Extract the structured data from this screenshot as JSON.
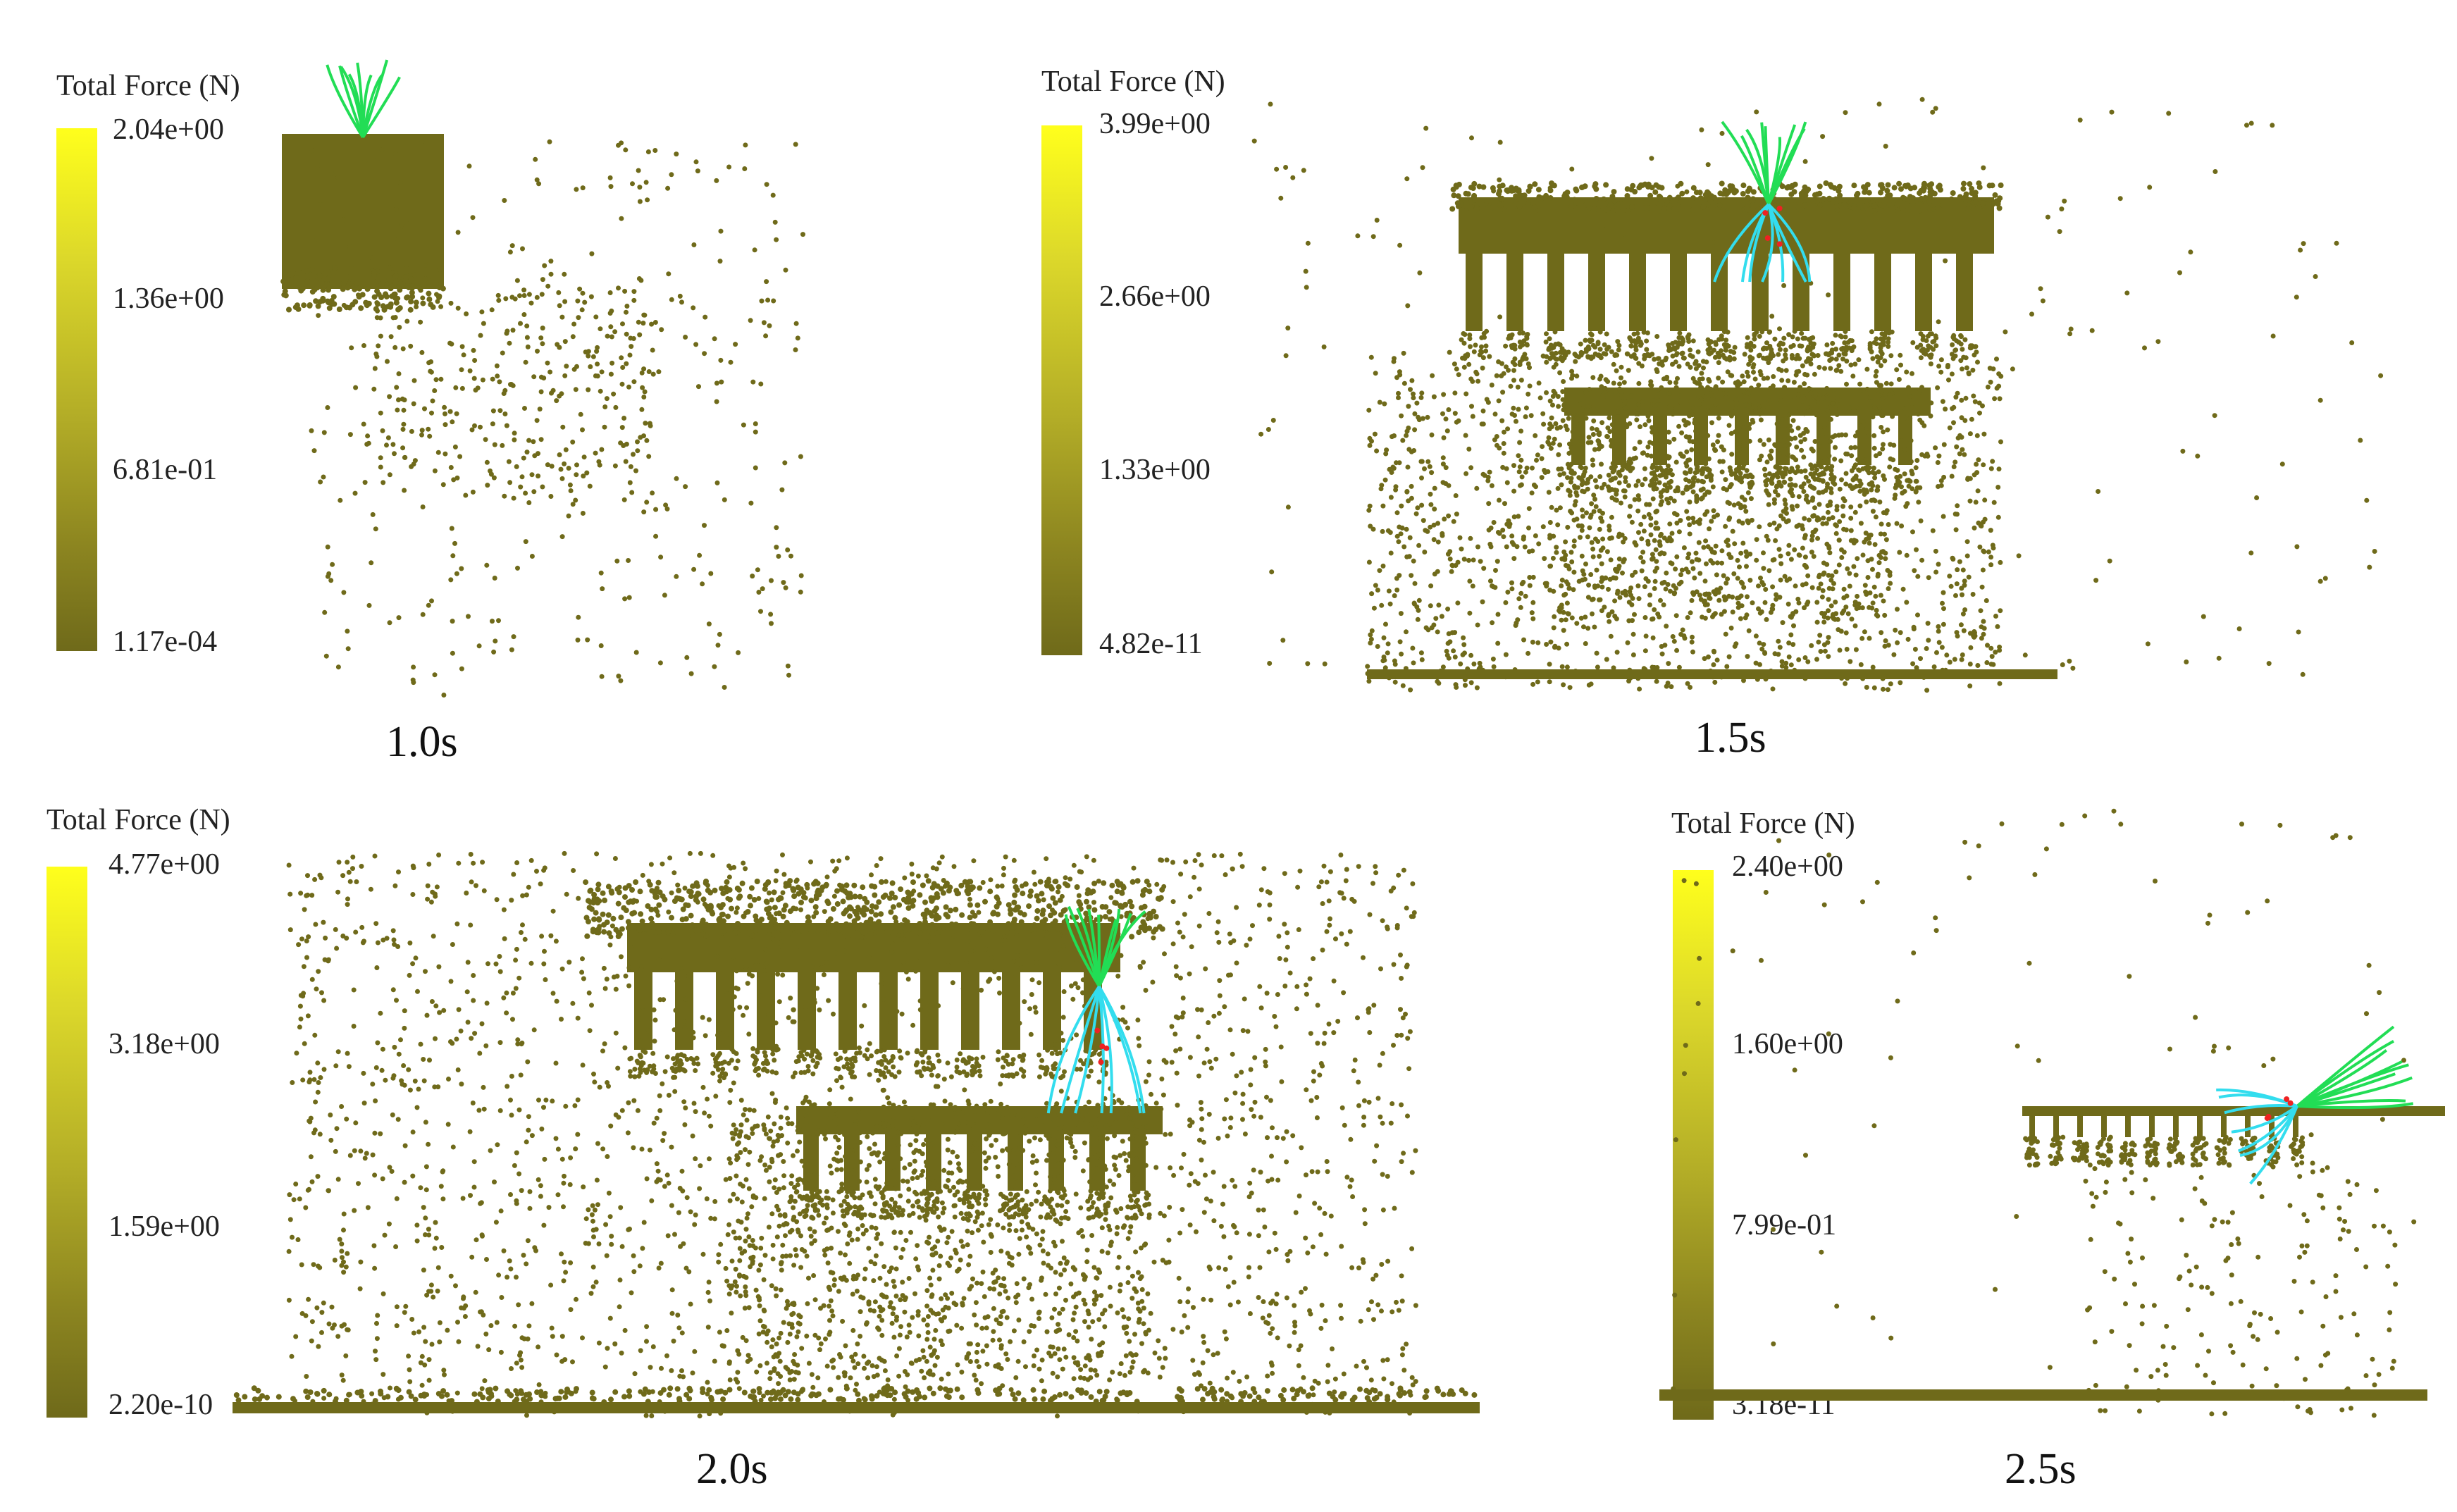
{
  "panels": [
    {
      "time_label": "1.0s",
      "legend": {
        "title": "Total Force (N)",
        "ticks": [
          "2.04e+00",
          "1.36e+00",
          "6.81e-01",
          "1.17e-04"
        ]
      }
    },
    {
      "time_label": "1.5s",
      "legend": {
        "title": "Total Force (N)",
        "ticks": [
          "3.99e+00",
          "2.66e+00",
          "1.33e+00",
          "4.82e-11"
        ]
      }
    },
    {
      "time_label": "2.0s",
      "legend": {
        "title": "Total Force (N)",
        "ticks": [
          "4.77e+00",
          "3.18e+00",
          "1.59e+00",
          "2.20e-10"
        ]
      }
    },
    {
      "time_label": "2.5s",
      "legend": {
        "title": "Total Force (N)",
        "ticks": [
          "2.40e+00",
          "1.60e+00",
          "7.99e-01",
          "3.18e-11"
        ]
      }
    }
  ],
  "colors": {
    "particle": "#6f6a1a",
    "colorbar_top": "#ffff1c",
    "colorbar_bottom": "#6f6a1a",
    "plant_leaf": "#22dd55",
    "plant_root": "#33ddee",
    "contact_point": "#ee2222"
  }
}
